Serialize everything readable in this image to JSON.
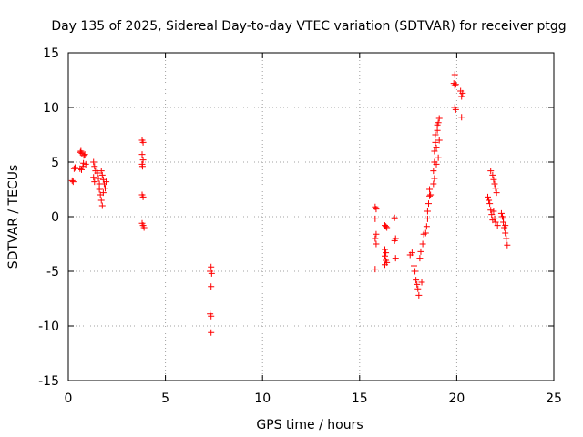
{
  "chart_data": {
    "type": "scatter",
    "title": "Day 135 of 2025, Sidereal Day-to-day VTEC variation (SDTVAR) for receiver ptgg",
    "xlabel": "GPS time / hours",
    "ylabel": "SDTVAR / TECUs",
    "xlim": [
      0,
      25
    ],
    "ylim": [
      -15,
      15
    ],
    "xticks": [
      0,
      5,
      10,
      15,
      20,
      25
    ],
    "yticks": [
      -15,
      -10,
      -5,
      0,
      5,
      10,
      15
    ],
    "xtick_labels": [
      "0",
      "5",
      "10",
      "15",
      "20",
      "25"
    ],
    "ytick_labels": [
      "-15",
      "-10",
      "-5",
      "0",
      "5",
      "10",
      "15"
    ],
    "grid": true,
    "marker": "+",
    "color": "#ff0000",
    "series": [
      {
        "name": "SDTVAR",
        "points": [
          [
            0.2,
            3.3
          ],
          [
            0.25,
            3.2
          ],
          [
            0.3,
            4.4
          ],
          [
            0.35,
            4.5
          ],
          [
            0.6,
            4.4
          ],
          [
            0.62,
            5.9
          ],
          [
            0.65,
            6.0
          ],
          [
            0.7,
            5.8
          ],
          [
            0.75,
            4.6
          ],
          [
            0.8,
            5.6
          ],
          [
            0.85,
            5.7
          ],
          [
            0.9,
            4.8
          ],
          [
            0.68,
            4.3
          ],
          [
            0.78,
            4.9
          ],
          [
            1.3,
            5.0
          ],
          [
            1.35,
            4.6
          ],
          [
            1.3,
            3.6
          ],
          [
            1.35,
            3.2
          ],
          [
            1.4,
            4.2
          ],
          [
            1.5,
            4.0
          ],
          [
            1.55,
            3.5
          ],
          [
            1.6,
            3.0
          ],
          [
            1.6,
            2.5
          ],
          [
            1.65,
            2.0
          ],
          [
            1.7,
            1.5
          ],
          [
            1.75,
            1.0
          ],
          [
            1.7,
            4.2
          ],
          [
            1.75,
            3.8
          ],
          [
            1.8,
            3.4
          ],
          [
            1.85,
            3.0
          ],
          [
            1.9,
            2.6
          ],
          [
            1.95,
            3.2
          ],
          [
            1.8,
            2.2
          ],
          [
            3.8,
            7.0
          ],
          [
            3.85,
            6.8
          ],
          [
            3.8,
            5.7
          ],
          [
            3.85,
            5.2
          ],
          [
            3.8,
            4.8
          ],
          [
            3.82,
            4.6
          ],
          [
            3.8,
            2.0
          ],
          [
            3.85,
            1.8
          ],
          [
            3.8,
            -0.6
          ],
          [
            3.85,
            -0.8
          ],
          [
            3.9,
            -1.0
          ],
          [
            7.35,
            -4.6
          ],
          [
            7.3,
            -5.0
          ],
          [
            7.38,
            -5.2
          ],
          [
            7.35,
            -6.4
          ],
          [
            7.3,
            -8.9
          ],
          [
            7.35,
            -9.1
          ],
          [
            7.35,
            -10.6
          ],
          [
            15.8,
            0.9
          ],
          [
            15.85,
            0.7
          ],
          [
            15.8,
            -0.2
          ],
          [
            15.85,
            -1.6
          ],
          [
            15.8,
            -2.0
          ],
          [
            15.85,
            -2.5
          ],
          [
            15.8,
            -4.8
          ],
          [
            16.3,
            -0.8
          ],
          [
            16.35,
            -0.9
          ],
          [
            16.4,
            -1.0
          ],
          [
            16.3,
            -3.0
          ],
          [
            16.35,
            -3.3
          ],
          [
            16.3,
            -3.6
          ],
          [
            16.35,
            -4.0
          ],
          [
            16.4,
            -4.2
          ],
          [
            16.3,
            -4.4
          ],
          [
            16.8,
            -0.1
          ],
          [
            16.85,
            -2.0
          ],
          [
            16.8,
            -2.2
          ],
          [
            16.85,
            -3.8
          ],
          [
            17.6,
            -3.5
          ],
          [
            17.7,
            -3.3
          ],
          [
            17.8,
            -4.5
          ],
          [
            17.85,
            -5.0
          ],
          [
            17.9,
            -5.8
          ],
          [
            17.95,
            -6.2
          ],
          [
            18.0,
            -6.6
          ],
          [
            18.05,
            -7.2
          ],
          [
            18.1,
            -3.8
          ],
          [
            18.15,
            -3.2
          ],
          [
            18.2,
            -6.0
          ],
          [
            18.25,
            -2.5
          ],
          [
            18.3,
            -1.6
          ],
          [
            18.4,
            -1.5
          ],
          [
            18.45,
            -0.9
          ],
          [
            18.5,
            -0.2
          ],
          [
            18.5,
            0.5
          ],
          [
            18.55,
            1.2
          ],
          [
            18.6,
            1.9
          ],
          [
            18.6,
            2.5
          ],
          [
            18.65,
            2.0
          ],
          [
            18.8,
            3.0
          ],
          [
            18.8,
            4.2
          ],
          [
            18.85,
            5.0
          ],
          [
            18.85,
            6.0
          ],
          [
            18.9,
            6.8
          ],
          [
            18.9,
            7.5
          ],
          [
            18.95,
            4.8
          ],
          [
            19.0,
            7.9
          ],
          [
            19.0,
            8.4
          ],
          [
            19.05,
            8.6
          ],
          [
            19.1,
            9.0
          ],
          [
            18.85,
            3.5
          ],
          [
            18.95,
            6.3
          ],
          [
            19.05,
            5.4
          ],
          [
            19.1,
            7.0
          ],
          [
            19.9,
            13.0
          ],
          [
            19.85,
            12.2
          ],
          [
            19.9,
            12.0
          ],
          [
            19.95,
            12.1
          ],
          [
            19.9,
            10.0
          ],
          [
            19.95,
            9.8
          ],
          [
            20.2,
            11.5
          ],
          [
            20.25,
            11.0
          ],
          [
            20.3,
            11.3
          ],
          [
            20.25,
            9.1
          ],
          [
            21.6,
            1.8
          ],
          [
            21.65,
            1.5
          ],
          [
            21.7,
            1.2
          ],
          [
            21.75,
            0.6
          ],
          [
            21.8,
            0.2
          ],
          [
            21.85,
            -0.3
          ],
          [
            21.9,
            0.5
          ],
          [
            21.95,
            -0.2
          ],
          [
            22.0,
            -0.5
          ],
          [
            22.1,
            -0.8
          ],
          [
            21.75,
            4.2
          ],
          [
            21.85,
            3.8
          ],
          [
            21.9,
            3.4
          ],
          [
            21.95,
            3.0
          ],
          [
            22.0,
            2.6
          ],
          [
            22.05,
            2.2
          ],
          [
            22.3,
            0.3
          ],
          [
            22.35,
            0.0
          ],
          [
            22.4,
            -0.5
          ],
          [
            22.45,
            -1.0
          ],
          [
            22.5,
            -1.5
          ],
          [
            22.55,
            -2.0
          ],
          [
            22.6,
            -2.6
          ],
          [
            22.4,
            -0.2
          ],
          [
            22.5,
            -0.8
          ]
        ]
      }
    ]
  }
}
